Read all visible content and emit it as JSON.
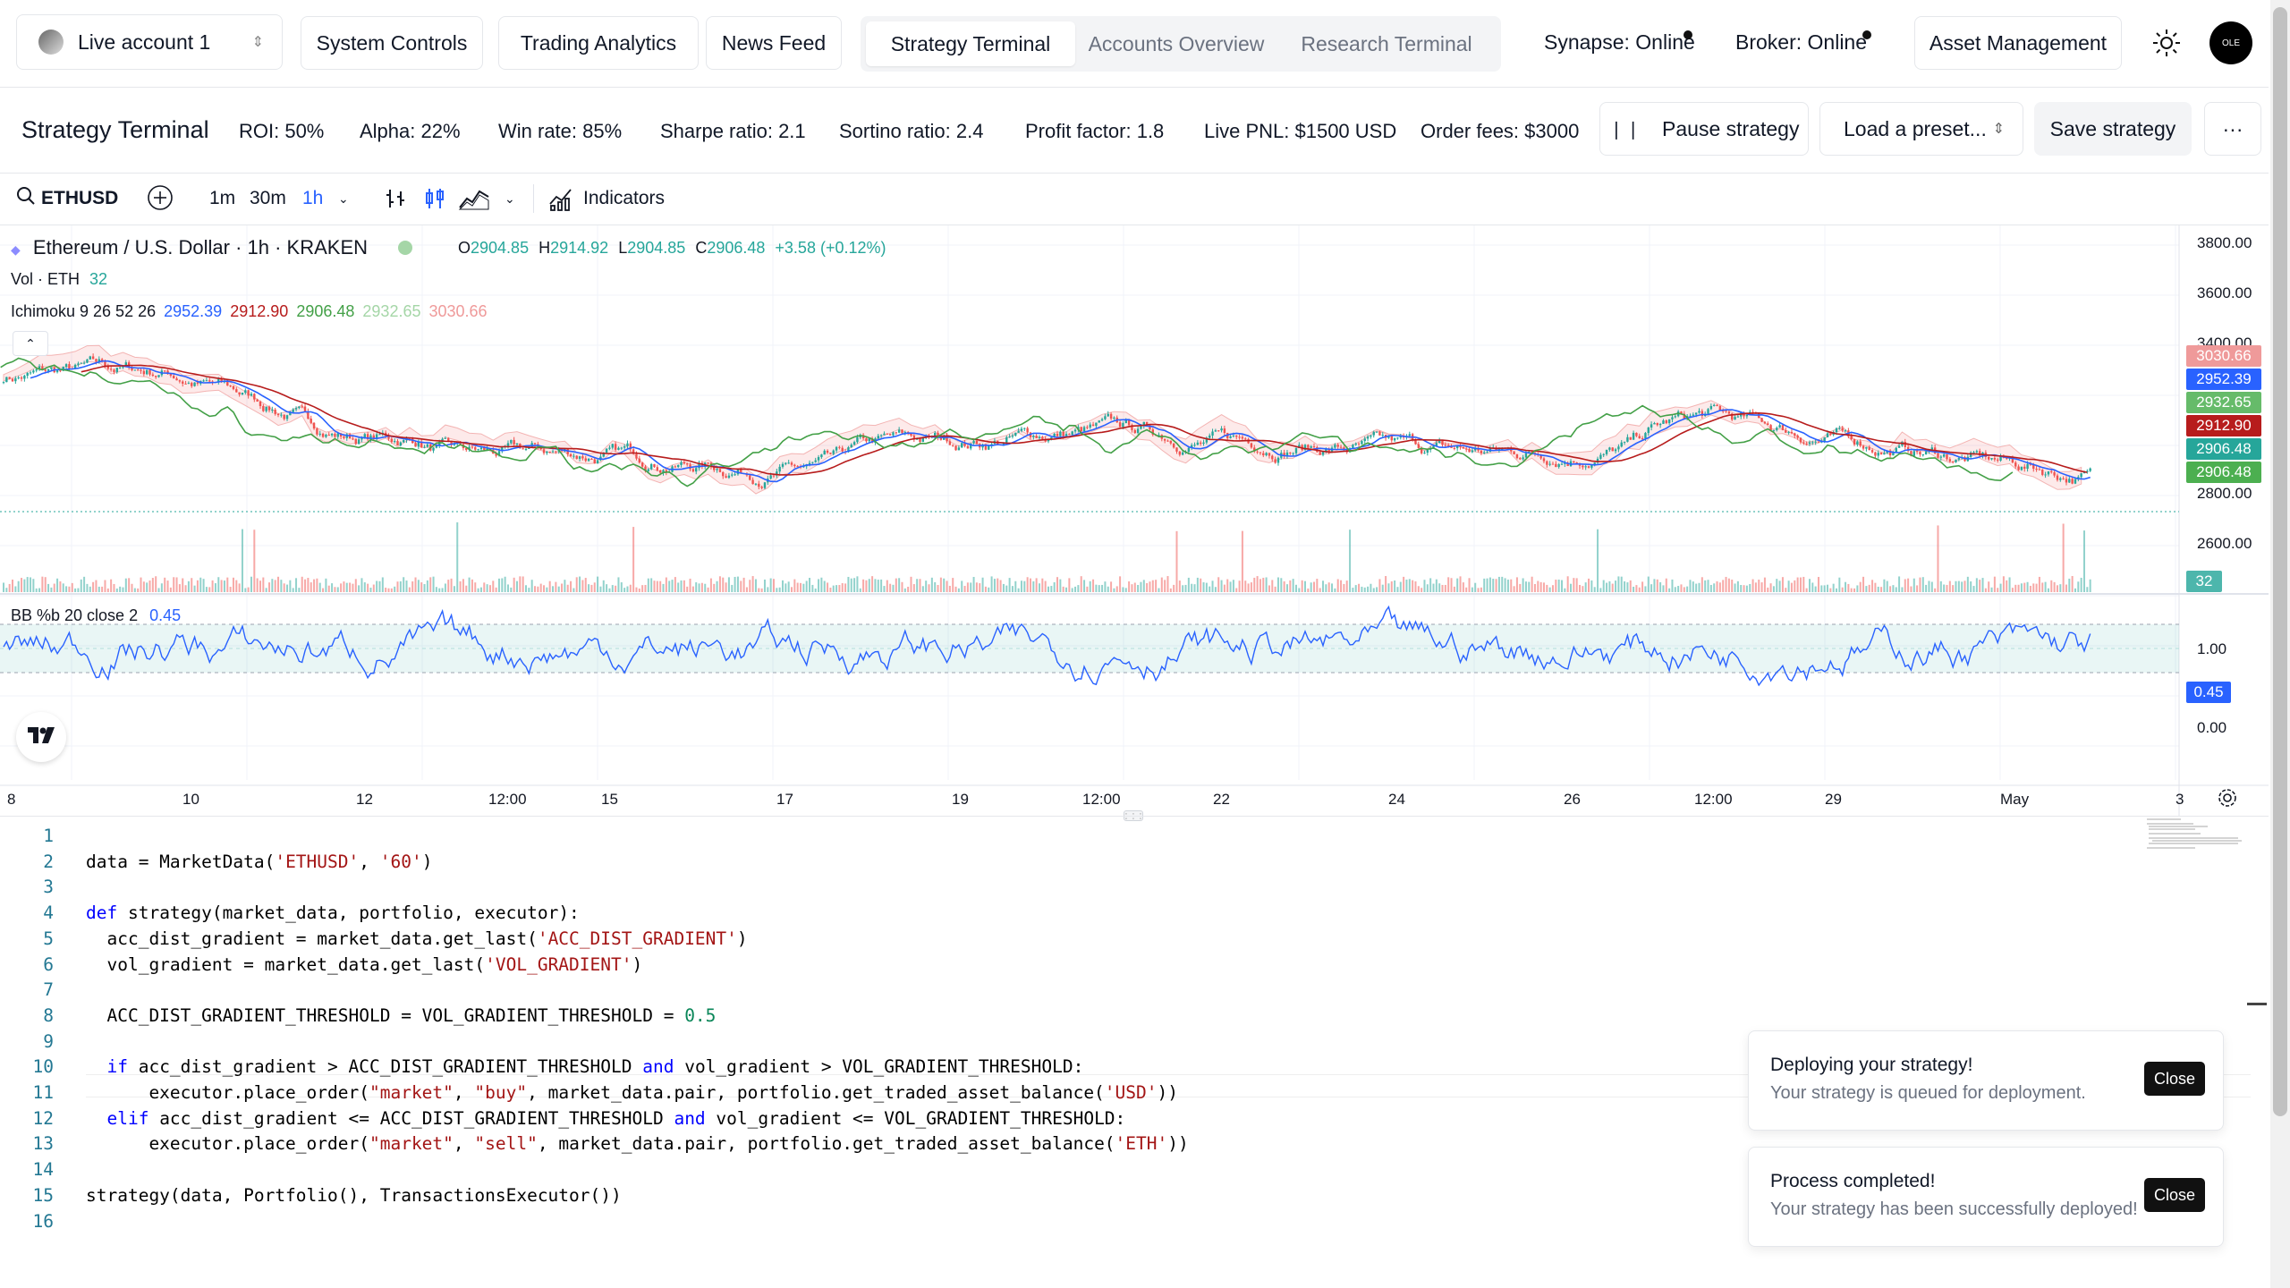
{
  "header": {
    "account_select": "Live account 1",
    "nav_buttons": [
      "System Controls",
      "Trading Analytics",
      "News Feed"
    ],
    "tabs": [
      "Strategy Terminal",
      "Accounts Overview",
      "Research Terminal"
    ],
    "synapse_status": "Synapse: Online",
    "broker_status": "Broker: Online",
    "asset_management": "Asset Management",
    "avatar_text": "OLE"
  },
  "strategy_bar": {
    "title": "Strategy Terminal",
    "metrics": [
      "ROI: 50%",
      "Alpha: 22%",
      "Win rate: 85%",
      "Sharpe ratio: 2.1",
      "Sortino ratio: 2.4",
      "Profit factor: 1.8",
      "Live PNL: $1500 USD",
      "Order fees: $3000"
    ],
    "pause_label": "Pause strategy",
    "preset_label": "Load a preset...",
    "save_label": "Save strategy",
    "more_label": "···"
  },
  "chart_toolbar": {
    "symbol": "ETHUSD",
    "intervals": [
      "1m",
      "30m",
      "1h"
    ],
    "indicators": "Indicators"
  },
  "chart": {
    "pair_title": "Ethereum / U.S. Dollar · 1h · KRAKEN",
    "ohlc": {
      "o": "2904.85",
      "h": "2914.92",
      "l": "2904.85",
      "c": "2906.48",
      "change": "+3.58 (+0.12%)"
    },
    "vol_label": "Vol · ETH",
    "vol_value": "32",
    "ichimoku_label": "Ichimoku 9 26 52 26",
    "ichimoku_values": [
      "2952.39",
      "2912.90",
      "2906.48",
      "2932.65",
      "3030.66"
    ],
    "bb_label": "BB %b 20 close 2",
    "bb_value": "0.45",
    "price_axis": [
      "3800.00",
      "3600.00",
      "3400.00",
      "2800.00",
      "2600.00"
    ],
    "price_tags": [
      {
        "label": "3030.66",
        "color": "#ef9a9a"
      },
      {
        "label": "2952.39",
        "color": "#2962ff"
      },
      {
        "label": "2932.65",
        "color": "#66bb6a"
      },
      {
        "label": "2912.90",
        "color": "#b71c1c"
      },
      {
        "label": "2906.48",
        "color": "#26a69a"
      },
      {
        "label": "2906.48",
        "color": "#4caf50"
      }
    ],
    "vol_tag": "32",
    "bb_axis": [
      "1.00",
      "0.00"
    ],
    "bb_tag": "0.45",
    "time_axis": [
      "8",
      "10",
      "12",
      "12:00",
      "15",
      "17",
      "19",
      "12:00",
      "22",
      "24",
      "26",
      "12:00",
      "29",
      "May",
      "3"
    ]
  },
  "editor": {
    "lines": [
      "",
      "data = MarketData('ETHUSD', '60')",
      "",
      "def strategy(market_data, portfolio, executor):",
      "  acc_dist_gradient = market_data.get_last('ACC_DIST_GRADIENT')",
      "  vol_gradient = market_data.get_last('VOL_GRADIENT')",
      "",
      "  ACC_DIST_GRADIENT_THRESHOLD = VOL_GRADIENT_THRESHOLD = 0.5",
      "",
      "  if acc_dist_gradient > ACC_DIST_GRADIENT_THRESHOLD and vol_gradient > VOL_GRADIENT_THRESHOLD:",
      "      executor.place_order(\"market\", \"buy\", market_data.pair, portfolio.get_traded_asset_balance('USD'))",
      "  elif acc_dist_gradient <= ACC_DIST_GRADIENT_THRESHOLD and vol_gradient <= VOL_GRADIENT_THRESHOLD:",
      "      executor.place_order(\"market\", \"sell\", market_data.pair, portfolio.get_traded_asset_balance('ETH'))",
      "",
      "strategy(data, Portfolio(), TransactionsExecutor())",
      ""
    ]
  },
  "toasts": [
    {
      "title": "Deploying your strategy!",
      "desc": "Your strategy is queued for deployment.",
      "close": "Close"
    },
    {
      "title": "Process completed!",
      "desc": "Your strategy has been successfully deployed!",
      "close": "Close"
    }
  ],
  "colors": {
    "up": "#26a69a",
    "down": "#ef5350",
    "tenkan": "#2962ff",
    "kijun": "#b71c1c",
    "chikou": "#43a047",
    "bb": "#2962ff"
  }
}
